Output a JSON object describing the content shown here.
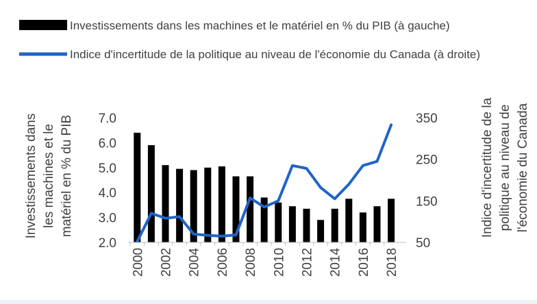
{
  "chart_data": {
    "type": "bar",
    "legend_position": "top",
    "grid": false,
    "x": [
      "2000",
      "2001",
      "2002",
      "2003",
      "2004",
      "2005",
      "2006",
      "2007",
      "2008",
      "2009",
      "2010",
      "2011",
      "2012",
      "2013",
      "2014",
      "2015",
      "2016",
      "2017",
      "2018"
    ],
    "x_tick_labels": [
      "2000",
      "2002",
      "2004",
      "2006",
      "2008",
      "2010",
      "2012",
      "2014",
      "2016",
      "2018"
    ],
    "series": [
      {
        "name": "Investissements dans les machines et le matériel en % du PIB (à gauche)",
        "type": "bar",
        "axis": "left",
        "color": "#000000",
        "values": [
          6.4,
          5.9,
          5.1,
          4.95,
          4.9,
          5.0,
          5.05,
          4.65,
          4.65,
          3.8,
          3.6,
          3.45,
          3.35,
          2.9,
          3.35,
          3.75,
          3.2,
          3.45,
          3.75
        ]
      },
      {
        "name": "Indice d'incertitude de la politique au niveau de l'économie du Canada (à droite)",
        "type": "line",
        "axis": "right",
        "color": "#1f64c8",
        "values": [
          52,
          120,
          108,
          112,
          70,
          67,
          65,
          68,
          157,
          135,
          150,
          235,
          228,
          182,
          155,
          190,
          235,
          245,
          333
        ]
      }
    ],
    "y_left": {
      "label": "Investissements dans les machines et le matériel en % du PIB",
      "min": 2.0,
      "max": 7.0,
      "ticks": [
        "2.0",
        "3.0",
        "4.0",
        "5.0",
        "6.0",
        "7.0"
      ]
    },
    "y_right": {
      "label": "Indice d'incertitude de la politique au niveau de l'économie du Canada",
      "min": 50,
      "max": 350,
      "ticks": [
        "50",
        "150",
        "250",
        "350"
      ]
    }
  }
}
